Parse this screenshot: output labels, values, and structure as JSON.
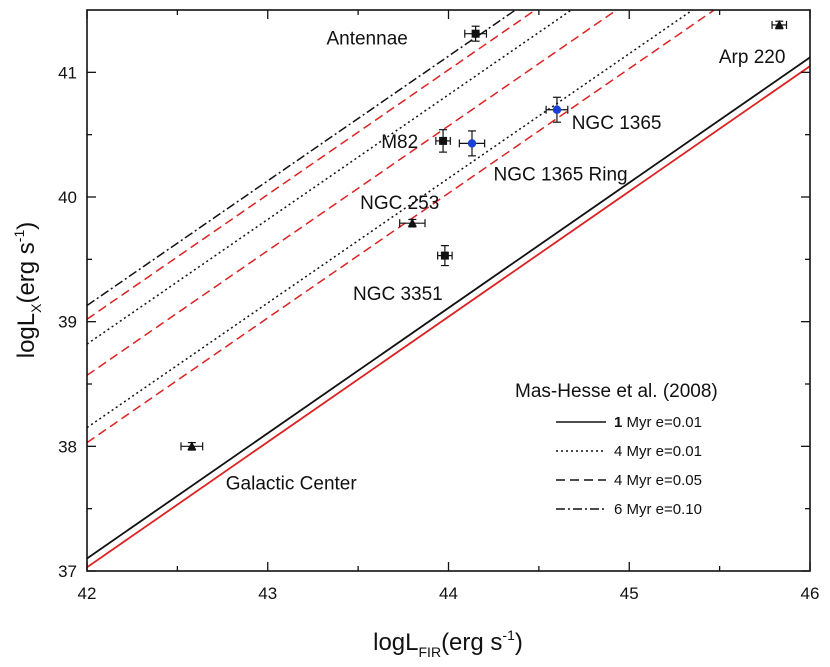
{
  "chart_data": {
    "type": "line",
    "xlabel": {
      "main": "logL",
      "sub": "FIR",
      "unit_start": "(erg s",
      "sup": "-1",
      "unit_end": ")"
    },
    "ylabel": {
      "main": "logL",
      "sub": "X",
      "unit_start": "(erg s",
      "sup": "-1",
      "unit_end": ")"
    },
    "xlim": [
      42,
      46
    ],
    "ylim": [
      37,
      41.5
    ],
    "xticks": [
      42,
      43,
      44,
      45,
      46
    ],
    "yticks": [
      37,
      38,
      39,
      40,
      41
    ],
    "grid": false,
    "legend": {
      "title": "Mas-Hesse et al. (2008)",
      "placement": "bottom-right",
      "entries": [
        {
          "bold": "1",
          "text": " Myr e=0.01",
          "dash": "solid"
        },
        {
          "bold": "",
          "text": "4 Myr e=0.01",
          "dash": "dotted"
        },
        {
          "bold": "",
          "text": "4 Myr e=0.05",
          "dash": "dashed"
        },
        {
          "bold": "",
          "text": "6 Myr e=0.10",
          "dash": "dashdot"
        }
      ]
    },
    "series": [
      {
        "name": "1 Myr e=0.01",
        "color": "#111111",
        "dash": "solid",
        "x": [
          42,
          46
        ],
        "y": [
          37.1,
          41.12
        ]
      },
      {
        "name": "1 Myr e=0.01 (red)",
        "color": "#dd2222",
        "dash": "solid",
        "x": [
          42,
          46
        ],
        "y": [
          37.03,
          41.05
        ]
      },
      {
        "name": "4 Myr e=0.01",
        "color": "#111111",
        "dash": "dotted",
        "x": [
          42,
          46
        ],
        "y": [
          38.15,
          42.15
        ]
      },
      {
        "name": "4 Myr e=0.01 (red)",
        "color": "#dd2222",
        "dash": "dashed",
        "x": [
          42,
          46
        ],
        "y": [
          38.03,
          42.03
        ]
      },
      {
        "name": "4 Myr e=0.05",
        "color": "#111111",
        "dash": "dotted",
        "x": [
          42,
          46
        ],
        "y": [
          38.82,
          42.82
        ]
      },
      {
        "name": "4 Myr e=0.05 (red)",
        "color": "#dd2222",
        "dash": "dashed",
        "x": [
          42,
          46
        ],
        "y": [
          38.57,
          42.57
        ]
      },
      {
        "name": "6 Myr e=0.10",
        "color": "#111111",
        "dash": "dashdot",
        "x": [
          42,
          46
        ],
        "y": [
          39.13,
          43.13
        ]
      },
      {
        "name": "6 Myr e=0.10 (red)",
        "color": "#dd2222",
        "dash": "dashed",
        "x": [
          42,
          46
        ],
        "y": [
          39.02,
          43.02
        ]
      }
    ],
    "points": [
      {
        "name": "Antennae",
        "x": 44.15,
        "y": 41.31,
        "xerr": 0.06,
        "yerr": 0.06,
        "marker": "square",
        "color": "#111111"
      },
      {
        "name": "Arp 220",
        "x": 45.83,
        "y": 41.38,
        "xerr": 0.04,
        "yerr": 0.03,
        "marker": "triangle",
        "color": "#111111"
      },
      {
        "name": "M82",
        "x": 43.97,
        "y": 40.45,
        "xerr": 0.04,
        "yerr": 0.09,
        "marker": "square",
        "color": "#111111"
      },
      {
        "name": "NGC 1365 Ring",
        "x": 44.13,
        "y": 40.43,
        "xerr": 0.07,
        "yerr": 0.1,
        "marker": "circle",
        "color": "#1a3fd6"
      },
      {
        "name": "NGC 1365",
        "x": 44.6,
        "y": 40.7,
        "xerr": 0.06,
        "yerr": 0.1,
        "marker": "circle",
        "color": "#1a3fd6"
      },
      {
        "name": "NGC 253",
        "x": 43.8,
        "y": 39.79,
        "xerr": 0.07,
        "yerr": 0.03,
        "marker": "triangle",
        "color": "#111111"
      },
      {
        "name": "NGC 3351",
        "x": 43.98,
        "y": 39.53,
        "xerr": 0.04,
        "yerr": 0.08,
        "marker": "square",
        "color": "#111111"
      },
      {
        "name": "Galactic Center",
        "x": 42.58,
        "y": 38.0,
        "xerr": 0.06,
        "yerr": 0.03,
        "marker": "triangle",
        "color": "#111111"
      }
    ],
    "annotations": [
      {
        "text": "Antennae",
        "x": 43.55,
        "y": 41.28
      },
      {
        "text": "Arp 220",
        "x": 45.68,
        "y": 41.13
      },
      {
        "text": "M82",
        "x": 43.73,
        "y": 40.45
      },
      {
        "text": "NGC 1365",
        "x": 44.93,
        "y": 40.6
      },
      {
        "text": "NGC 1365 Ring",
        "x": 44.62,
        "y": 40.19
      },
      {
        "text": "NGC 253",
        "x": 43.73,
        "y": 39.96
      },
      {
        "text": "NGC 3351",
        "x": 43.72,
        "y": 39.23
      },
      {
        "text": "Galactic Center",
        "x": 43.13,
        "y": 37.71
      }
    ]
  }
}
